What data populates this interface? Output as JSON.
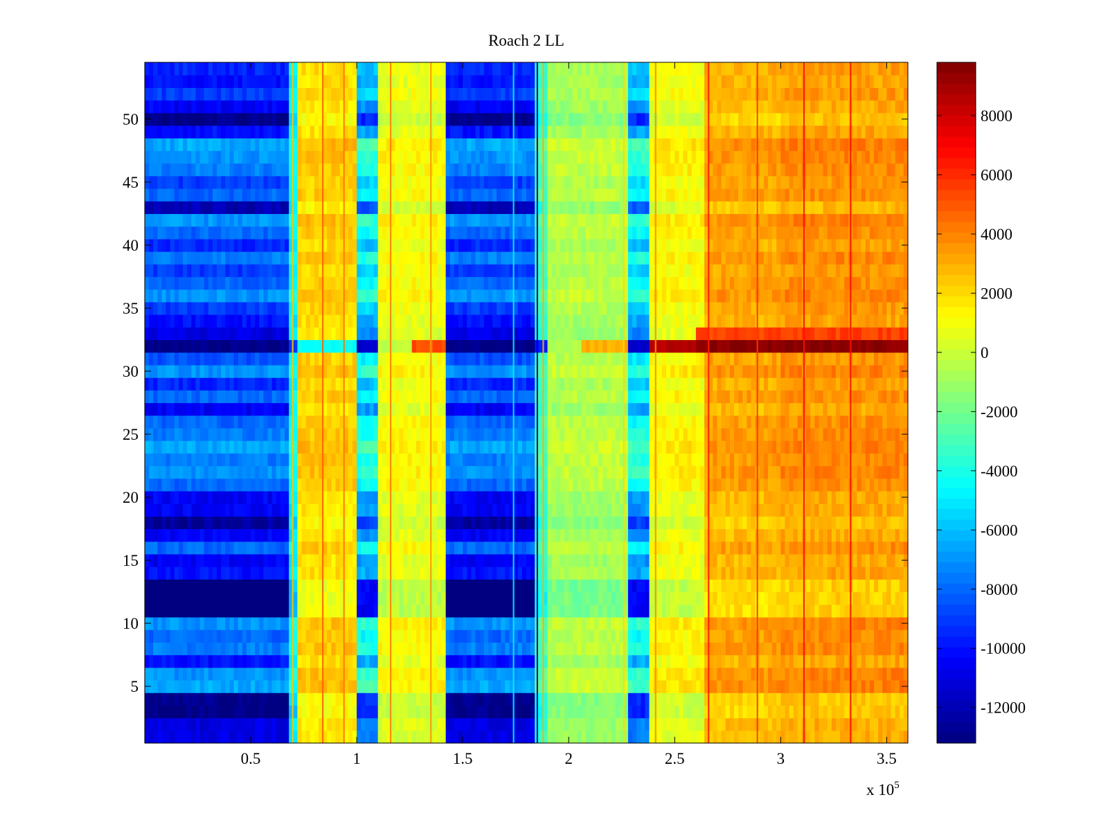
{
  "chart_data": {
    "type": "heatmap",
    "title": "Roach 2 LL",
    "xlabel": "",
    "ylabel": "",
    "x_exponent_label": "x 10",
    "x_exponent": "5",
    "xlim": [
      0,
      3.6
    ],
    "ylim": [
      0.5,
      54.5
    ],
    "x_ticks": [
      0.5,
      1,
      1.5,
      2,
      2.5,
      3,
      3.5
    ],
    "x_tick_labels": [
      "0.5",
      "1",
      "1.5",
      "2",
      "2.5",
      "3",
      "3.5"
    ],
    "y_ticks": [
      5,
      10,
      15,
      20,
      25,
      30,
      35,
      40,
      45,
      50
    ],
    "y_tick_labels": [
      "5",
      "10",
      "15",
      "20",
      "25",
      "30",
      "35",
      "40",
      "45",
      "50"
    ],
    "colorbar": {
      "colormap": "jet",
      "range": [
        -13200,
        9800
      ],
      "ticks": [
        8000,
        6000,
        4000,
        2000,
        0,
        -2000,
        -4000,
        -6000,
        -8000,
        -10000,
        -12000
      ],
      "tick_labels": [
        "8000",
        "6000",
        "4000",
        "2000",
        "0",
        "-2000",
        "-4000",
        "-6000",
        "-8000",
        "-10000",
        "-12000"
      ]
    },
    "column_segments": [
      {
        "x_start": 0.0,
        "x_end": 0.69,
        "base": -8500,
        "variable": true
      },
      {
        "x_start": 0.69,
        "x_end": 0.73,
        "base": -4500,
        "variable": false
      },
      {
        "x_start": 0.73,
        "x_end": 1.0,
        "base": 2200,
        "variable": false
      },
      {
        "x_start": 1.0,
        "x_end": 1.1,
        "base": -5000,
        "variable": true
      },
      {
        "x_start": 1.1,
        "x_end": 1.42,
        "base": 1000,
        "variable": false
      },
      {
        "x_start": 1.42,
        "x_end": 1.85,
        "base": -8500,
        "variable": true
      },
      {
        "x_start": 1.85,
        "x_end": 1.9,
        "base": -3000,
        "variable": false
      },
      {
        "x_start": 1.9,
        "x_end": 2.28,
        "base": -500,
        "variable": false
      },
      {
        "x_start": 2.28,
        "x_end": 2.38,
        "base": -5000,
        "variable": true
      },
      {
        "x_start": 2.38,
        "x_end": 2.65,
        "base": 1200,
        "variable": false
      },
      {
        "x_start": 2.65,
        "x_end": 3.0,
        "base": 3200,
        "variable": false
      },
      {
        "x_start": 3.0,
        "x_end": 3.6,
        "base": 3600,
        "variable": false
      }
    ],
    "row_offsets": {
      "1": -2500,
      "2": -2500,
      "3": -4500,
      "4": -4500,
      "5": 2000,
      "6": 1500,
      "7": -1500,
      "8": 1000,
      "9": 500,
      "10": 1500,
      "11": -5500,
      "12": -5500,
      "13": -5500,
      "14": -1500,
      "15": -2000,
      "16": 500,
      "17": -2000,
      "18": -4000,
      "19": -2000,
      "20": -2000,
      "21": 500,
      "22": 1500,
      "23": 1000,
      "24": 2000,
      "25": 1000,
      "26": 500,
      "27": -2000,
      "28": 500,
      "29": -1000,
      "30": 1500,
      "31": 0,
      "33": -2500,
      "34": -1500,
      "35": -500,
      "36": 1500,
      "37": 500,
      "38": -500,
      "39": 1000,
      "40": -1000,
      "41": 500,
      "42": 1500,
      "43": -3500,
      "44": 500,
      "45": -500,
      "46": 1000,
      "47": 1500,
      "48": 2000,
      "49": -1500,
      "50": -4500,
      "51": -2000,
      "52": -500,
      "53": -1500,
      "54": -1000
    },
    "special_row": {
      "y": 32,
      "segments": [
        {
          "x_start": 0.0,
          "x_end": 0.69,
          "value": -13000
        },
        {
          "x_start": 0.69,
          "x_end": 0.73,
          "value": -9000
        },
        {
          "x_start": 0.73,
          "x_end": 1.0,
          "value": -4500
        },
        {
          "x_start": 1.0,
          "x_end": 1.1,
          "value": -11500
        },
        {
          "x_start": 1.1,
          "x_end": 1.26,
          "value": -200
        },
        {
          "x_start": 1.26,
          "x_end": 1.42,
          "value": 5200
        },
        {
          "x_start": 1.42,
          "x_end": 1.85,
          "value": -13000
        },
        {
          "x_start": 1.85,
          "x_end": 1.9,
          "value": -9500
        },
        {
          "x_start": 1.9,
          "x_end": 2.06,
          "value": -500
        },
        {
          "x_start": 2.06,
          "x_end": 2.28,
          "value": 3000
        },
        {
          "x_start": 2.28,
          "x_end": 2.38,
          "value": -11500
        },
        {
          "x_start": 2.38,
          "x_end": 2.6,
          "value": 8500
        },
        {
          "x_start": 2.6,
          "x_end": 3.6,
          "value": 9500
        }
      ]
    },
    "row_33_right_value": 5500,
    "vertical_streaks": [
      {
        "x": 0.698,
        "delta": 7000
      },
      {
        "x": 0.84,
        "delta": 2500
      },
      {
        "x": 0.94,
        "delta": 2000
      },
      {
        "x": 1.16,
        "delta": 3000
      },
      {
        "x": 1.35,
        "delta": 2500
      },
      {
        "x": 1.74,
        "delta": 3500
      },
      {
        "x": 1.852,
        "delta": -9000
      },
      {
        "x": 1.88,
        "delta": 6000
      },
      {
        "x": 2.26,
        "delta": 2500
      },
      {
        "x": 2.41,
        "delta": 2500
      },
      {
        "x": 2.66,
        "delta": 3000
      },
      {
        "x": 2.89,
        "delta": 2500
      },
      {
        "x": 3.11,
        "delta": 3000
      },
      {
        "x": 3.33,
        "delta": 3000
      }
    ]
  }
}
